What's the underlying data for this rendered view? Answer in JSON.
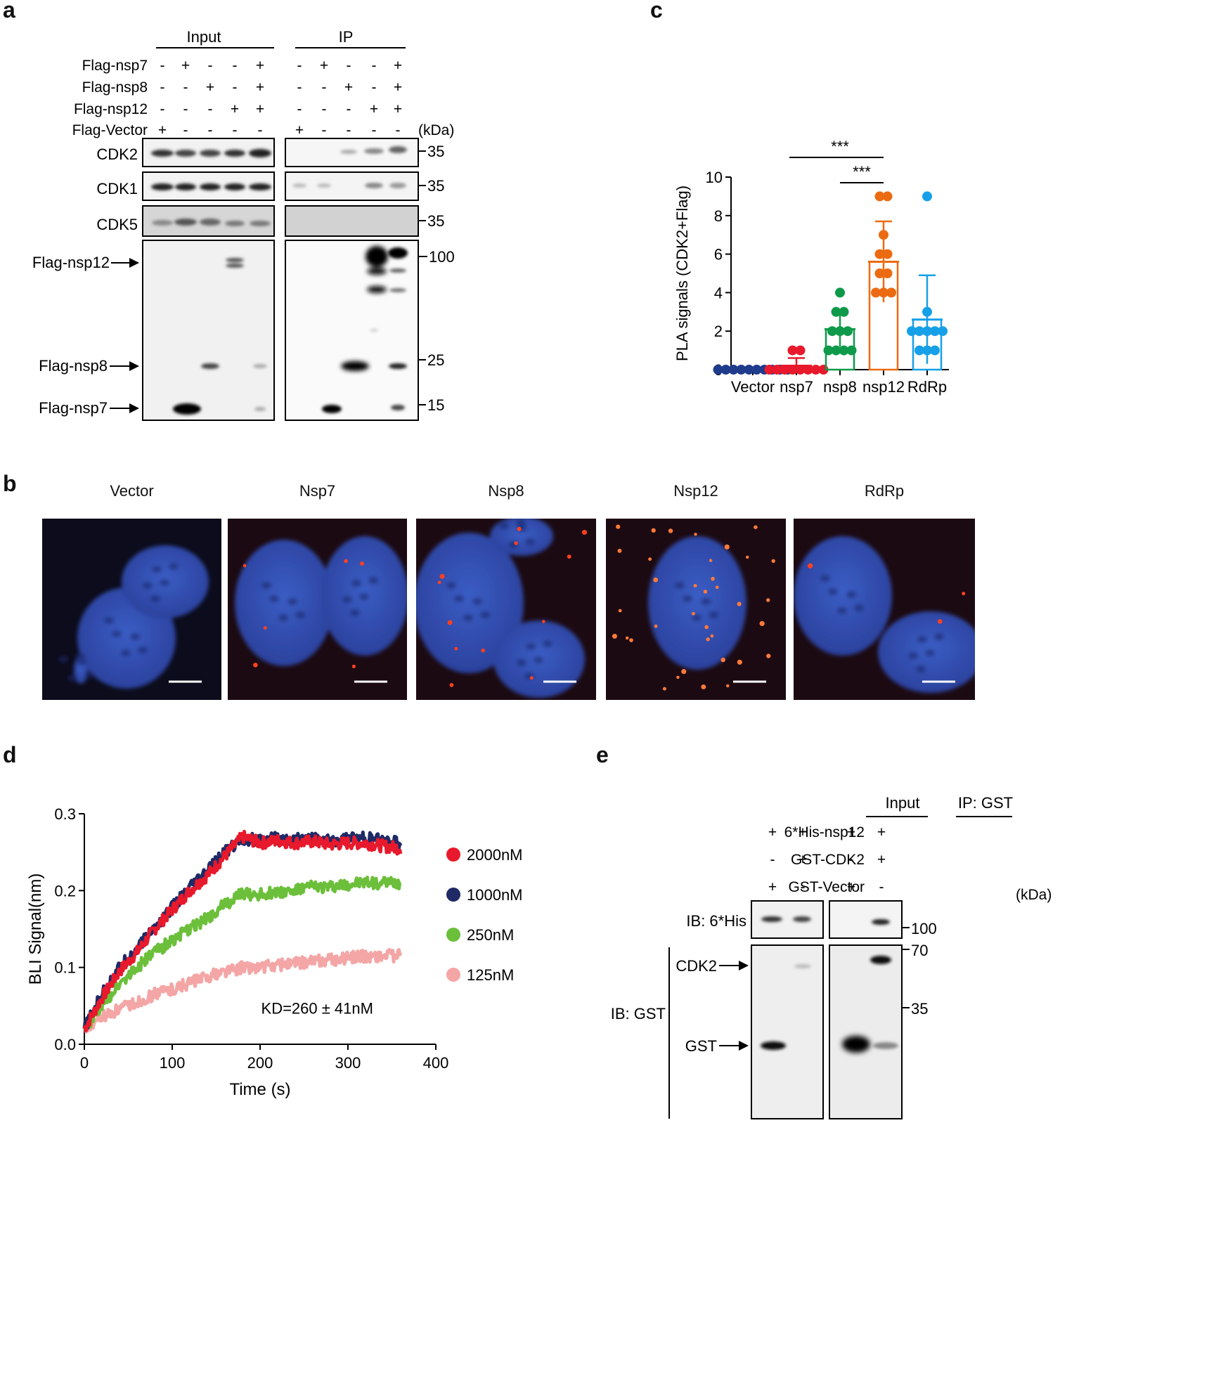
{
  "panel_letters": {
    "a": "a",
    "b": "b",
    "c": "c",
    "d": "d",
    "e": "e"
  },
  "panel_a": {
    "groups": [
      "Input",
      "IP"
    ],
    "row_labels": [
      "Flag-nsp7",
      "Flag-nsp8",
      "Flag-nsp12",
      "Flag-Vector"
    ],
    "signs": [
      [
        "-",
        "+",
        "-",
        "-",
        "+"
      ],
      [
        "-",
        "-",
        "+",
        "-",
        "+"
      ],
      [
        "-",
        "-",
        "-",
        "+",
        "+"
      ],
      [
        "+",
        "-",
        "-",
        "-",
        "-"
      ]
    ],
    "kda_label": "(kDa)",
    "blot_labels": [
      "CDK2",
      "CDK1",
      "CDK5"
    ],
    "arrow_labels": [
      "Flag-nsp12",
      "Flag-nsp8",
      "Flag-nsp7"
    ],
    "markers": [
      "35",
      "35",
      "35",
      "100",
      "25",
      "15"
    ]
  },
  "panel_b": {
    "titles": [
      "Vector",
      "Nsp7",
      "Nsp8",
      "Nsp12",
      "RdRp"
    ]
  },
  "chart_data": [
    {
      "type": "scatter",
      "panel": "c",
      "ylabel": "PLA signals (CDK2+Flag)",
      "categories": [
        "Vector",
        "nsp7",
        "nsp8",
        "nsp12",
        "RdRp"
      ],
      "ylim": [
        0,
        10
      ],
      "yticks": [
        "0",
        "2",
        "4",
        "6",
        "8",
        "10"
      ],
      "colors": [
        "#1f3b8c",
        "#e8192c",
        "#0e9a4a",
        "#ec6b12",
        "#16a0e8"
      ],
      "means": [
        0,
        0.2,
        2.1,
        5.6,
        2.6
      ],
      "sd": [
        0,
        0.4,
        0.9,
        2.1,
        2.3
      ],
      "points": [
        [
          0,
          0,
          0,
          0,
          0,
          0,
          0,
          0,
          0,
          0
        ],
        [
          1,
          1,
          0,
          0,
          0,
          0,
          0,
          0,
          0,
          0
        ],
        [
          4,
          3,
          3,
          2,
          2,
          2,
          1,
          1,
          1,
          1
        ],
        [
          9,
          9,
          7,
          6,
          6,
          5,
          5,
          4,
          4,
          4
        ],
        [
          9,
          3,
          2,
          2,
          2,
          2,
          2,
          1,
          1,
          1
        ]
      ],
      "significance": [
        "***",
        "***"
      ]
    },
    {
      "type": "line",
      "panel": "d",
      "xlabel": "Time (s)",
      "ylabel": "BLI Signal(nm)",
      "xlim": [
        0,
        400
      ],
      "ylim": [
        0,
        0.3
      ],
      "xticks": [
        "0",
        "100",
        "200",
        "300",
        "400"
      ],
      "yticks": [
        "0.0",
        "0.1",
        "0.2",
        "0.3"
      ],
      "annotation": "KD=260 ± 41nM",
      "series": [
        {
          "name": "2000nM",
          "color": "#e8192c",
          "x": [
            0,
            20,
            40,
            60,
            80,
            100,
            120,
            140,
            160,
            180,
            200,
            220,
            240,
            260,
            280,
            300,
            320,
            340,
            360
          ],
          "y": [
            0.02,
            0.06,
            0.095,
            0.12,
            0.15,
            0.175,
            0.2,
            0.22,
            0.245,
            0.27,
            0.262,
            0.265,
            0.262,
            0.264,
            0.26,
            0.262,
            0.262,
            0.258,
            0.255
          ]
        },
        {
          "name": "1000nM",
          "color": "#1f2a66",
          "x": [
            0,
            20,
            40,
            60,
            80,
            100,
            120,
            140,
            160,
            180,
            200,
            220,
            240,
            260,
            280,
            300,
            320,
            340,
            360
          ],
          "y": [
            0.02,
            0.065,
            0.1,
            0.125,
            0.152,
            0.178,
            0.203,
            0.225,
            0.25,
            0.268,
            0.265,
            0.268,
            0.266,
            0.268,
            0.265,
            0.268,
            0.268,
            0.265,
            0.262
          ]
        },
        {
          "name": "250nM",
          "color": "#6cbf3a",
          "x": [
            0,
            20,
            40,
            60,
            80,
            100,
            120,
            140,
            160,
            180,
            200,
            220,
            240,
            260,
            280,
            300,
            320,
            340,
            360
          ],
          "y": [
            0.02,
            0.05,
            0.08,
            0.1,
            0.12,
            0.135,
            0.15,
            0.165,
            0.182,
            0.196,
            0.195,
            0.198,
            0.2,
            0.205,
            0.205,
            0.208,
            0.21,
            0.21,
            0.21
          ]
        },
        {
          "name": "125nM",
          "color": "#f4a6a6",
          "x": [
            0,
            20,
            40,
            60,
            80,
            100,
            120,
            140,
            160,
            180,
            200,
            220,
            240,
            260,
            280,
            300,
            320,
            340,
            360
          ],
          "y": [
            0.02,
            0.035,
            0.045,
            0.055,
            0.065,
            0.072,
            0.08,
            0.088,
            0.095,
            0.1,
            0.1,
            0.103,
            0.105,
            0.108,
            0.11,
            0.112,
            0.115,
            0.115,
            0.115
          ]
        }
      ]
    }
  ],
  "panel_e": {
    "groups": [
      "Input",
      "IP: GST"
    ],
    "row_labels": [
      "6*His-nsp12",
      "GST-CDK2",
      "GST-Vector"
    ],
    "signs": [
      [
        "+",
        "+",
        "+",
        "+"
      ],
      [
        "-",
        "+",
        "-",
        "+"
      ],
      [
        "+",
        "-",
        "+",
        "-"
      ]
    ],
    "kda_label": "(kDa)",
    "ib_labels": [
      "IB: 6*His",
      "IB: GST"
    ],
    "arrow_labels": [
      "CDK2",
      "GST"
    ],
    "markers": [
      "100",
      "70",
      "35"
    ]
  }
}
